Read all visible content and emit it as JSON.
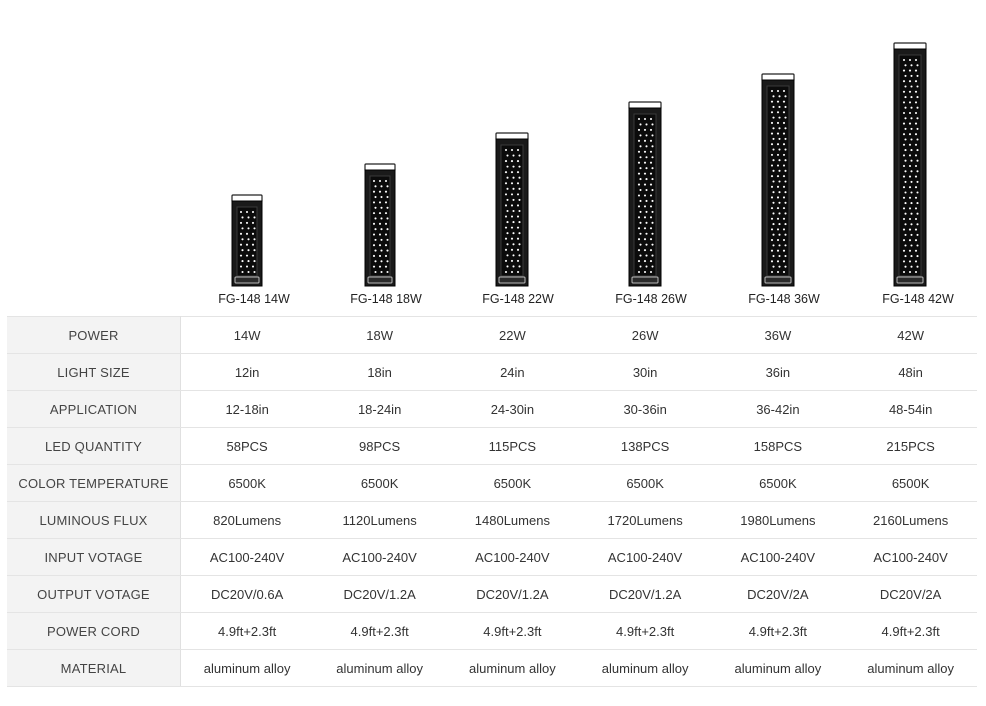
{
  "products": [
    {
      "name": "FG-148 14W",
      "led_quantity": 58
    },
    {
      "name": "FG-148 18W",
      "led_quantity": 98
    },
    {
      "name": "FG-148 22W",
      "led_quantity": 115
    },
    {
      "name": "FG-148 26W",
      "led_quantity": 138
    },
    {
      "name": "FG-148 36W",
      "led_quantity": 158
    },
    {
      "name": "FG-148 42W",
      "led_quantity": 215
    }
  ],
  "table": {
    "rows": [
      {
        "label": "POWER",
        "values": [
          "14W",
          "18W",
          "22W",
          "26W",
          "36W",
          "42W"
        ]
      },
      {
        "label": "LIGHT SIZE",
        "values": [
          "12in",
          "18in",
          "24in",
          "30in",
          "36in",
          "48in"
        ]
      },
      {
        "label": "APPLICATION",
        "values": [
          "12-18in",
          "18-24in",
          "24-30in",
          "30-36in",
          "36-42in",
          "48-54in"
        ]
      },
      {
        "label": "LED QUANTITY",
        "values": [
          "58PCS",
          "98PCS",
          "115PCS",
          "138PCS",
          "158PCS",
          "215PCS"
        ]
      },
      {
        "label": "COLOR TEMPERATURE",
        "values": [
          "6500K",
          "6500K",
          "6500K",
          "6500K",
          "6500K",
          "6500K"
        ]
      },
      {
        "label": "LUMINOUS FLUX",
        "values": [
          "820Lumens",
          "1120Lumens",
          "1480Lumens",
          "1720Lumens",
          "1980Lumens",
          "2160Lumens"
        ]
      },
      {
        "label": "INPUT VOTAGE",
        "values": [
          "AC100-240V",
          "AC100-240V",
          "AC100-240V",
          "AC100-240V",
          "AC100-240V",
          "AC100-240V"
        ]
      },
      {
        "label": "OUTPUT VOTAGE",
        "values": [
          "DC20V/0.6A",
          "DC20V/1.2A",
          "DC20V/1.2A",
          "DC20V/1.2A",
          "DC20V/2A",
          "DC20V/2A"
        ]
      },
      {
        "label": "POWER CORD",
        "values": [
          "4.9ft+2.3ft",
          "4.9ft+2.3ft",
          "4.9ft+2.3ft",
          "4.9ft+2.3ft",
          "4.9ft+2.3ft",
          "4.9ft+2.3ft"
        ]
      },
      {
        "label": "MATERIAL",
        "values": [
          "aluminum alloy",
          "aluminum alloy",
          "aluminum alloy",
          "aluminum alloy",
          "aluminum alloy",
          "aluminum alloy"
        ]
      }
    ]
  },
  "colors": {
    "light_body": "#1a1a1a",
    "led_dot": "#ffffff",
    "bracket": "#ffffff",
    "label_cell_bg": "#f3f3f3"
  }
}
